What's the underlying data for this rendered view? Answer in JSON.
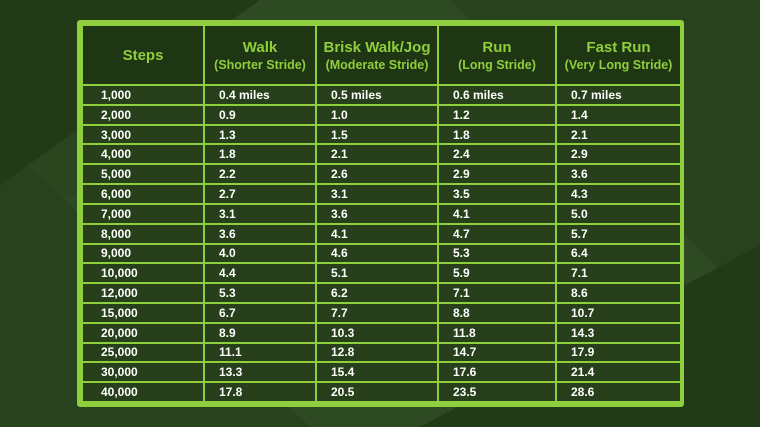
{
  "colors": {
    "accent_green": "#8fce3c",
    "header_bg": "#1e3614",
    "cell_bg": "#273f1b",
    "page_bg": "#2e4a22",
    "body_text": "#ffffff"
  },
  "chart_data": {
    "type": "table",
    "columns": [
      {
        "title": "Steps",
        "subtitle": ""
      },
      {
        "title": "Walk",
        "subtitle": "(Shorter Stride)"
      },
      {
        "title": "Brisk Walk/Jog",
        "subtitle": "(Moderate Stride)"
      },
      {
        "title": "Run",
        "subtitle": "(Long Stride)"
      },
      {
        "title": "Fast Run",
        "subtitle": "(Very Long Stride)"
      }
    ],
    "rows": [
      [
        "1,000",
        "0.4 miles",
        "0.5 miles",
        "0.6 miles",
        "0.7 miles"
      ],
      [
        "2,000",
        "0.9",
        "1.0",
        "1.2",
        "1.4"
      ],
      [
        "3,000",
        "1.3",
        "1.5",
        "1.8",
        "2.1"
      ],
      [
        "4,000",
        "1.8",
        "2.1",
        "2.4",
        "2.9"
      ],
      [
        "5,000",
        "2.2",
        "2.6",
        "2.9",
        "3.6"
      ],
      [
        "6,000",
        "2.7",
        "3.1",
        "3.5",
        "4.3"
      ],
      [
        "7,000",
        "3.1",
        "3.6",
        "4.1",
        "5.0"
      ],
      [
        "8,000",
        "3.6",
        "4.1",
        "4.7",
        "5.7"
      ],
      [
        "9,000",
        "4.0",
        "4.6",
        "5.3",
        "6.4"
      ],
      [
        "10,000",
        "4.4",
        "5.1",
        "5.9",
        "7.1"
      ],
      [
        "12,000",
        "5.3",
        "6.2",
        "7.1",
        "8.6"
      ],
      [
        "15,000",
        "6.7",
        "7.7",
        "8.8",
        "10.7"
      ],
      [
        "20,000",
        "8.9",
        "10.3",
        "11.8",
        "14.3"
      ],
      [
        "25,000",
        "11.1",
        "12.8",
        "14.7",
        "17.9"
      ],
      [
        "30,000",
        "13.3",
        "15.4",
        "17.6",
        "21.4"
      ],
      [
        "40,000",
        "17.8",
        "20.5",
        "23.5",
        "28.6"
      ]
    ]
  }
}
